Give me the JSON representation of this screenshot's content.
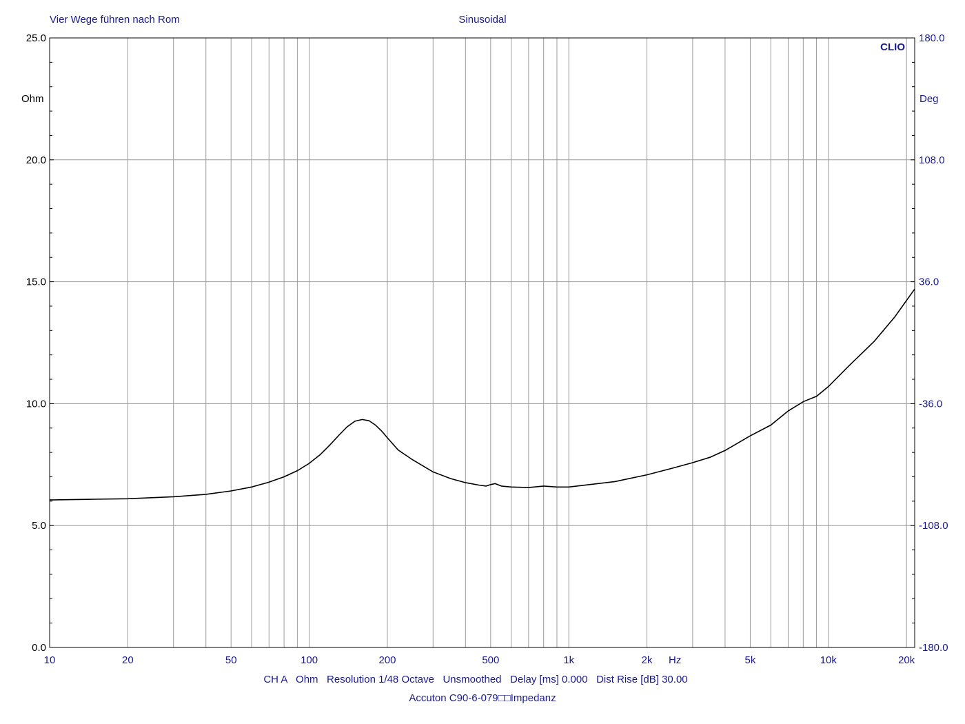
{
  "header": {
    "left_title": "Vier Wege führen nach Rom",
    "center_title": "Sinusoidal",
    "brand": "CLIO"
  },
  "footer": {
    "settings_line": "CH A   Ohm   Resolution 1/48 Octave   Unsmoothed   Delay [ms] 0.000   Dist Rise [dB] 30.00",
    "caption": "Accuton C90-6-079□□Impedanz"
  },
  "colors": {
    "curve": "#000000",
    "grid": "#9a9a9a",
    "text_blue": "#1a1a8c",
    "frame": "#000000"
  },
  "chart_data": {
    "type": "line",
    "xscale": "log",
    "xlim": [
      10,
      21500
    ],
    "ylim": [
      0,
      25
    ],
    "ylabel": "Ohm",
    "y2label": "Deg",
    "y2lim": [
      -180,
      180
    ],
    "xunit": "Hz",
    "grid": true,
    "x_tick_labels": [
      {
        "value": 10,
        "label": "10"
      },
      {
        "value": 20,
        "label": "20"
      },
      {
        "value": 50,
        "label": "50"
      },
      {
        "value": 100,
        "label": "100"
      },
      {
        "value": 200,
        "label": "200"
      },
      {
        "value": 500,
        "label": "500"
      },
      {
        "value": 1000,
        "label": "1k"
      },
      {
        "value": 2000,
        "label": "2k"
      },
      {
        "value": 5000,
        "label": "5k"
      },
      {
        "value": 10000,
        "label": "10k"
      },
      {
        "value": 20000,
        "label": "20k"
      }
    ],
    "y_tick_labels": [
      {
        "value": 0,
        "label": "0.0"
      },
      {
        "value": 5,
        "label": "5.0"
      },
      {
        "value": 10,
        "label": "10.0"
      },
      {
        "value": 15,
        "label": "15.0"
      },
      {
        "value": 20,
        "label": "20.0"
      },
      {
        "value": 25,
        "label": "25.0"
      }
    ],
    "y2_tick_labels": [
      {
        "value": -180,
        "label": "-180.0"
      },
      {
        "value": -108,
        "label": "-108.0"
      },
      {
        "value": -36,
        "label": "-36.0"
      },
      {
        "value": 36,
        "label": "36.0"
      },
      {
        "value": 108,
        "label": "108.0"
      },
      {
        "value": 180,
        "label": "180.0"
      }
    ],
    "series": [
      {
        "x": [
          10,
          15,
          20,
          30,
          40,
          50,
          60,
          70,
          80,
          90,
          100,
          110,
          120,
          130,
          140,
          150,
          160,
          170,
          180,
          190,
          200,
          220,
          250,
          300,
          350,
          400,
          450,
          480,
          500,
          520,
          550,
          600,
          700,
          800,
          900,
          1000,
          1200,
          1500,
          2000,
          2500,
          3000,
          3500,
          4000,
          5000,
          6000,
          7000,
          8000,
          9000,
          10000,
          12000,
          15000,
          18000,
          21500
        ],
        "y": [
          6.05,
          6.08,
          6.1,
          6.18,
          6.28,
          6.42,
          6.58,
          6.78,
          7.0,
          7.25,
          7.55,
          7.9,
          8.3,
          8.7,
          9.05,
          9.28,
          9.35,
          9.3,
          9.12,
          8.88,
          8.6,
          8.1,
          7.7,
          7.2,
          6.93,
          6.76,
          6.66,
          6.62,
          6.68,
          6.72,
          6.62,
          6.58,
          6.56,
          6.62,
          6.58,
          6.58,
          6.68,
          6.8,
          7.08,
          7.35,
          7.58,
          7.8,
          8.08,
          8.68,
          9.12,
          9.7,
          10.08,
          10.3,
          10.7,
          11.55,
          12.55,
          13.55,
          14.7
        ]
      }
    ]
  }
}
